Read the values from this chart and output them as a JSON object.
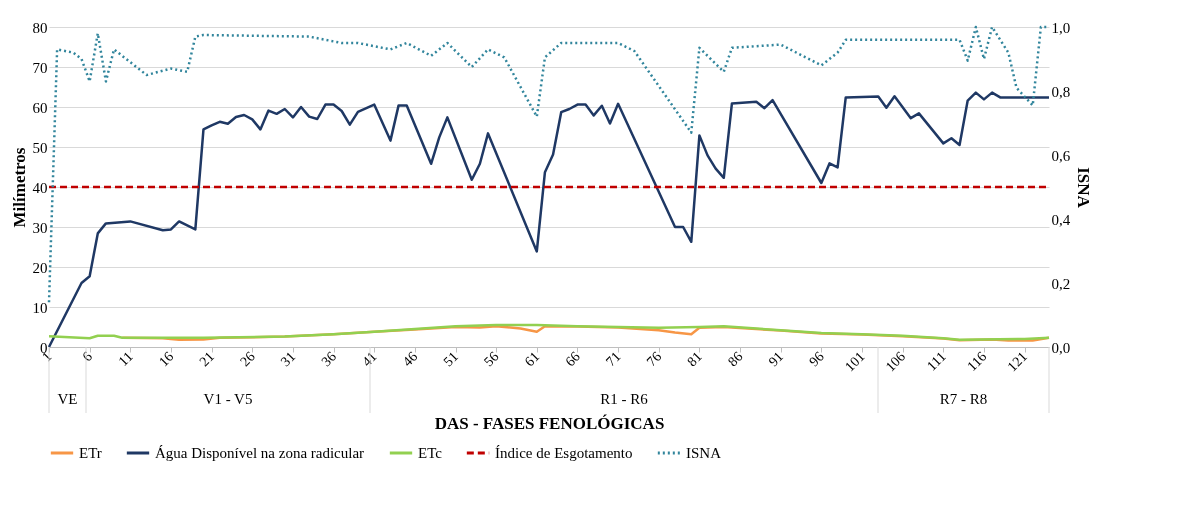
{
  "chart_data": {
    "type": "line",
    "xlabel": "DAS - FASES FENOLÓGICAS",
    "ylabel": "Milímetros",
    "y2label": "ISNA",
    "xlim": [
      1,
      124
    ],
    "xticks": [
      1,
      6,
      11,
      16,
      21,
      26,
      31,
      36,
      41,
      46,
      51,
      56,
      61,
      66,
      71,
      76,
      81,
      86,
      91,
      96,
      101,
      106,
      111,
      116,
      121
    ],
    "ylim": [
      0,
      80
    ],
    "yticks": [
      0,
      10,
      20,
      30,
      40,
      50,
      60,
      70,
      80
    ],
    "y2lim": [
      0,
      1
    ],
    "y2ticks": [
      {
        "value": 0,
        "label": "0,0"
      },
      {
        "value": 0.2,
        "label": "0,2"
      },
      {
        "value": 0.4,
        "label": "0,4"
      },
      {
        "value": 0.6,
        "label": "0,6"
      },
      {
        "value": 0.8,
        "label": "0,8"
      },
      {
        "value": 1,
        "label": "1,0"
      }
    ],
    "grid": "y",
    "legend": "bottom",
    "annotations": [
      "VE",
      "V1 - V5",
      "R1 - R6",
      "R7 - R8"
    ],
    "series": [
      {
        "name": "ETr",
        "color": "#f79646",
        "line_style": "solid",
        "x": [
          10,
          15,
          17,
          20,
          22,
          30,
          36,
          41,
          46,
          51,
          54,
          56,
          59,
          61,
          62,
          66,
          71,
          76,
          78,
          80,
          81,
          84,
          91,
          96,
          101,
          106,
          111,
          113,
          117,
          119,
          122,
          124
        ],
        "values": [
          2.3,
          2.2,
          1.8,
          1.9,
          2.3,
          2.6,
          3.2,
          3.8,
          4.4,
          5.0,
          4.9,
          5.2,
          4.6,
          3.8,
          5.2,
          5.1,
          4.9,
          4.2,
          3.6,
          3.2,
          4.8,
          5.0,
          4.1,
          3.4,
          3.1,
          2.7,
          2.1,
          1.7,
          1.9,
          1.6,
          1.6,
          2.3
        ]
      },
      {
        "name": "Água Disponível na zona radicular",
        "color": "#1f3864",
        "line_style": "solid",
        "x": [
          1,
          5,
          6,
          7,
          8,
          11,
          15,
          16,
          17,
          19,
          20,
          21,
          22,
          23,
          24,
          25,
          26,
          27,
          28,
          29,
          30,
          31,
          32,
          33,
          34,
          35,
          36,
          37,
          38,
          39,
          41,
          43,
          44,
          45,
          48,
          49,
          50,
          53,
          54,
          55,
          61,
          62,
          63,
          64,
          65,
          66,
          67,
          68,
          69,
          70,
          71,
          78,
          79,
          80,
          81,
          82,
          83,
          84,
          85,
          88,
          89,
          90,
          96,
          97,
          98,
          99,
          103,
          104,
          105,
          107,
          108,
          111,
          112,
          113,
          114,
          115,
          116,
          117,
          118,
          124
        ],
        "values": [
          0,
          16,
          17.7,
          28.4,
          30.9,
          31.4,
          29.2,
          29.4,
          31.4,
          29.4,
          54.4,
          55.4,
          56.3,
          55.8,
          57.5,
          58,
          56.9,
          54.4,
          59.1,
          58.3,
          59.5,
          57.4,
          60,
          57.6,
          57,
          60.6,
          60.6,
          59,
          55.6,
          58.8,
          60.6,
          51.6,
          60.4,
          60.4,
          45.8,
          52.4,
          57.4,
          41.8,
          45.8,
          53.4,
          23.9,
          43.7,
          48.1,
          58.7,
          59.5,
          60.6,
          60.6,
          57.9,
          60.3,
          55.9,
          60.8,
          30,
          30,
          26.3,
          52.9,
          47.9,
          44.6,
          42.3,
          60.9,
          61.3,
          59.7,
          61.7,
          41,
          45.9,
          44.9,
          62.4,
          62.6,
          59.8,
          62.7,
          57.2,
          58.4,
          50.9,
          52.2,
          50.5,
          61.6,
          63.6,
          61.9,
          63.6,
          62.4,
          62.4
        ]
      },
      {
        "name": "ETc",
        "color": "#92d050",
        "line_style": "solid",
        "x": [
          1,
          6,
          7,
          9,
          10,
          20,
          30,
          36,
          41,
          46,
          51,
          56,
          61,
          66,
          71,
          76,
          81,
          84,
          91,
          96,
          101,
          106,
          111,
          113,
          121,
          124
        ],
        "values": [
          2.7,
          2.2,
          2.8,
          2.8,
          2.3,
          2.3,
          2.6,
          3.2,
          3.8,
          4.5,
          5.2,
          5.5,
          5.5,
          5.2,
          5.0,
          4.8,
          5.0,
          5.2,
          4.2,
          3.5,
          3.2,
          2.8,
          2.2,
          1.8,
          2.0,
          2.3
        ]
      },
      {
        "name": "Índice de Esgotamento",
        "color": "#c00000",
        "line_style": "dashed",
        "x": [
          1,
          124
        ],
        "values": [
          40,
          40
        ]
      },
      {
        "name": "ISNA",
        "color": "#31859c",
        "line_style": "dotted",
        "axis": "y2",
        "x": [
          1,
          2,
          4,
          5,
          6,
          7,
          8,
          9,
          10,
          13,
          16,
          18,
          19,
          20,
          33,
          37,
          39,
          43,
          45,
          48,
          50,
          53,
          55,
          57,
          61,
          62,
          64,
          71,
          73,
          80,
          81,
          84,
          85,
          91,
          96,
          98,
          99,
          113,
          114,
          115,
          116,
          117,
          119,
          120,
          122,
          123,
          124
        ],
        "values": [
          0.14,
          0.93,
          0.92,
          0.9,
          0.83,
          0.98,
          0.83,
          0.93,
          0.91,
          0.85,
          0.87,
          0.86,
          0.97,
          0.975,
          0.97,
          0.95,
          0.95,
          0.93,
          0.95,
          0.91,
          0.95,
          0.875,
          0.93,
          0.905,
          0.72,
          0.905,
          0.95,
          0.95,
          0.925,
          0.67,
          0.935,
          0.86,
          0.935,
          0.945,
          0.88,
          0.92,
          0.96,
          0.96,
          0.895,
          1.0,
          0.9,
          1.0,
          0.92,
          0.81,
          0.755,
          1.0,
          1.0
        ]
      }
    ]
  }
}
